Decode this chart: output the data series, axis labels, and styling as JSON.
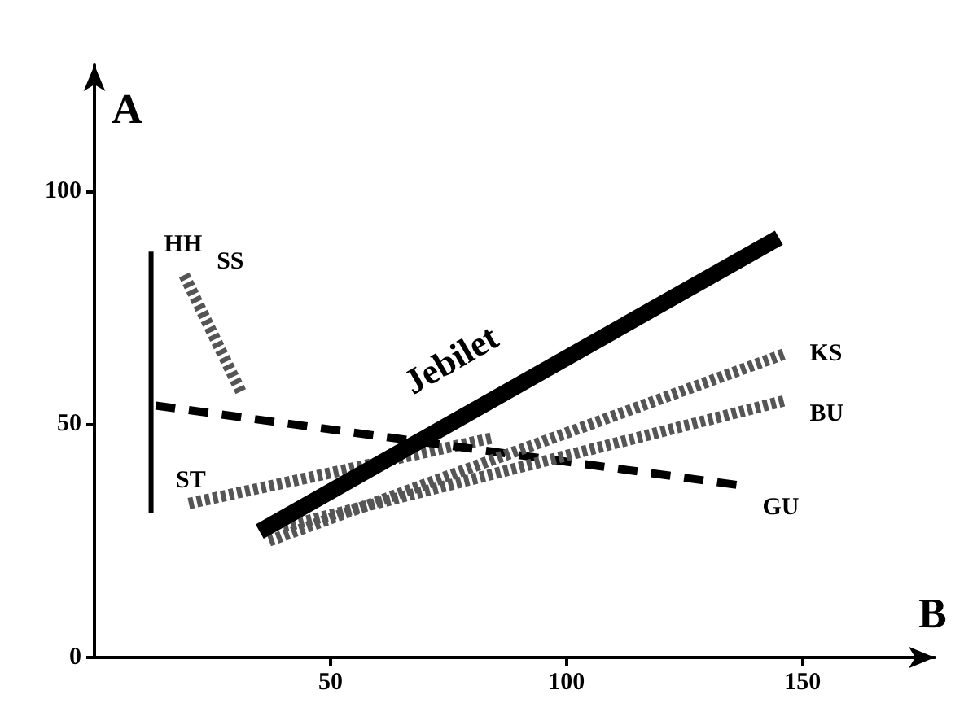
{
  "chart_data": {
    "type": "line",
    "xlabel": "B",
    "ylabel": "A",
    "xlim": [
      0,
      178
    ],
    "ylim": [
      0,
      127
    ],
    "xticks": [
      50,
      100,
      150
    ],
    "yticks": [
      0,
      50,
      100
    ],
    "grid": false,
    "legend": false,
    "series": [
      {
        "name": "HH",
        "color": "#000000",
        "line_style": "solid",
        "x": [
          12,
          12
        ],
        "values": [
          31,
          87
        ]
      },
      {
        "name": "SS",
        "color": "#555555",
        "line_style": "dotted",
        "x": [
          31,
          19
        ],
        "values": [
          57,
          82
        ]
      },
      {
        "name": "ST",
        "color": "#555555",
        "line_style": "dotted",
        "x": [
          84,
          20
        ],
        "values": [
          47,
          33
        ]
      },
      {
        "name": "GU",
        "color": "#000000",
        "line_style": "dashed",
        "x": [
          13,
          136
        ],
        "values": [
          54,
          37
        ]
      },
      {
        "name": "KS",
        "color": "#555555",
        "line_style": "dotted",
        "x": [
          37,
          146
        ],
        "values": [
          25,
          65
        ]
      },
      {
        "name": "BU",
        "color": "#555555",
        "line_style": "dotted",
        "x": [
          40,
          146
        ],
        "values": [
          28,
          55
        ]
      },
      {
        "name": "Jebilet",
        "color": "#000000",
        "line_style": "solid",
        "x": [
          35,
          145
        ],
        "values": [
          27,
          90
        ]
      }
    ]
  }
}
